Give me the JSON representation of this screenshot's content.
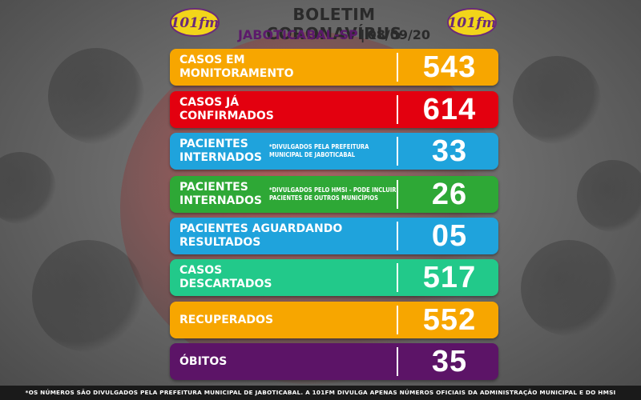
{
  "header": {
    "title": "BOLETIM CORONAVÍRUS",
    "city": "JABOTICABAL-SP",
    "separator": "|",
    "date": "08/09/20",
    "logo_text": "101fm"
  },
  "colors": {
    "orange": "#f7a600",
    "red": "#e3000f",
    "blue": "#1fa3dc",
    "green": "#2ea836",
    "teal": "#22c98a",
    "purple": "#5c1467"
  },
  "rows": [
    {
      "label": "CASOS EM MONITORAMENTO",
      "note": "",
      "value": "543",
      "color": "#f7a600"
    },
    {
      "label": "CASOS JÁ CONFIRMADOS",
      "note": "",
      "value": "614",
      "color": "#e3000f"
    },
    {
      "label": "PACIENTES INTERNADOS",
      "note": "*DIVULGADOS PELA PREFEITURA MUNICIPAL DE JABOTICABAL",
      "value": "33",
      "color": "#1fa3dc"
    },
    {
      "label": "PACIENTES INTERNADOS",
      "note": "*DIVULGADOS PELO HMSI - PODE INCLUIR PACIENTES DE OUTROS MUNICÍPIOS",
      "value": "26",
      "color": "#2ea836"
    },
    {
      "label": "PACIENTES AGUARDANDO RESULTADOS",
      "note": "",
      "value": "05",
      "color": "#1fa3dc"
    },
    {
      "label": "CASOS DESCARTADOS",
      "note": "",
      "value": "517",
      "color": "#22c98a"
    },
    {
      "label": "RECUPERADOS",
      "note": "",
      "value": "552",
      "color": "#f7a600"
    },
    {
      "label": "ÓBITOS",
      "note": "",
      "value": "35",
      "color": "#5c1467"
    }
  ],
  "footer": {
    "text": "*OS NÚMEROS SÃO DIVULGADOS PELA PREFEITURA MUNICIPAL DE JABOTICABAL. A 101FM DIVULGA APENAS NÚMEROS OFICIAIS DA ADMINISTRAÇÃO MUNICIPAL E DO HMSI"
  }
}
